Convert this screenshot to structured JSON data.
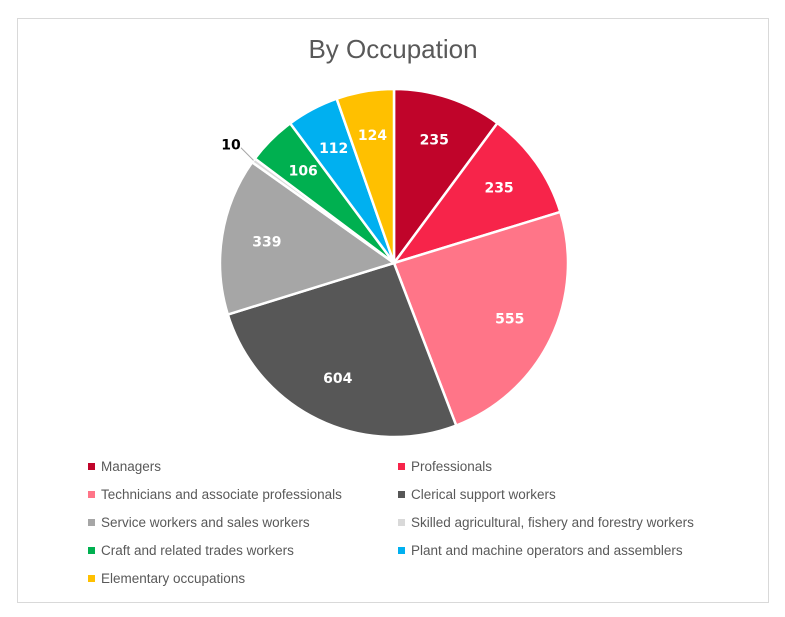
{
  "chart_data": {
    "type": "pie",
    "title": "By Occupation",
    "legend_position": "bottom",
    "slices": [
      {
        "label": "Managers",
        "value": 235,
        "color": "#c0042a",
        "label_color": "#ffffff"
      },
      {
        "label": "Professionals",
        "value": 235,
        "color": "#f7244a",
        "label_color": "#ffffff"
      },
      {
        "label": "Technicians and associate professionals",
        "value": 555,
        "color": "#ff7588",
        "label_color": "#ffffff"
      },
      {
        "label": "Clerical support workers",
        "value": 604,
        "color": "#575757",
        "label_color": "#ffffff"
      },
      {
        "label": "Service workers and sales workers",
        "value": 339,
        "color": "#a6a6a6",
        "label_color": "#ffffff"
      },
      {
        "label": "Skilled agricultural, fishery and forestry workers",
        "value": 10,
        "color": "#d9d9d9",
        "label_color": "#000000"
      },
      {
        "label": "Craft and related trades workers",
        "value": 106,
        "color": "#00b050",
        "label_color": "#ffffff"
      },
      {
        "label": "Plant and machine operators and assemblers",
        "value": 112,
        "color": "#00b0f0",
        "label_color": "#ffffff"
      },
      {
        "label": "Elementary occupations",
        "value": 124,
        "color": "#ffc000",
        "label_color": "#ffffff"
      }
    ]
  }
}
